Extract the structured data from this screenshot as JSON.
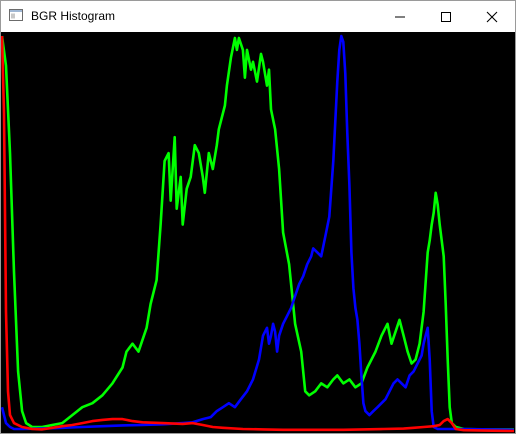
{
  "window": {
    "title": "BGR Histogram"
  },
  "icons": {
    "app": "app-window-icon",
    "minimize": "minimize-icon",
    "maximize": "maximize-icon",
    "close": "close-icon"
  },
  "colors": {
    "background": "#000000",
    "blue": "#0000ff",
    "green": "#00ff00",
    "red": "#ff0000"
  },
  "chart_data": {
    "type": "line",
    "xlim": [
      0,
      255
    ],
    "ylim": [
      0,
      1
    ],
    "grid": false,
    "series": [
      {
        "color": "#00ff00",
        "points": [
          [
            0,
            0.995
          ],
          [
            2,
            0.92
          ],
          [
            4,
            0.7
          ],
          [
            6,
            0.4
          ],
          [
            8,
            0.15
          ],
          [
            10,
            0.05
          ],
          [
            12,
            0.02
          ],
          [
            15,
            0.01
          ],
          [
            20,
            0.01
          ],
          [
            25,
            0.015
          ],
          [
            30,
            0.02
          ],
          [
            35,
            0.04
          ],
          [
            40,
            0.06
          ],
          [
            45,
            0.07
          ],
          [
            50,
            0.09
          ],
          [
            55,
            0.12
          ],
          [
            60,
            0.16
          ],
          [
            62,
            0.2
          ],
          [
            65,
            0.22
          ],
          [
            68,
            0.2
          ],
          [
            72,
            0.26
          ],
          [
            74,
            0.32
          ],
          [
            77,
            0.38
          ],
          [
            79,
            0.52
          ],
          [
            81,
            0.68
          ],
          [
            83,
            0.7
          ],
          [
            84,
            0.58
          ],
          [
            86,
            0.74
          ],
          [
            87,
            0.56
          ],
          [
            89,
            0.64
          ],
          [
            90,
            0.52
          ],
          [
            92,
            0.61
          ],
          [
            94,
            0.64
          ],
          [
            96,
            0.72
          ],
          [
            98,
            0.7
          ],
          [
            100,
            0.64
          ],
          [
            101,
            0.6
          ],
          [
            103,
            0.7
          ],
          [
            105,
            0.66
          ],
          [
            107,
            0.72
          ],
          [
            108,
            0.76
          ],
          [
            111,
            0.82
          ],
          [
            112,
            0.87
          ],
          [
            114,
            0.94
          ],
          [
            116,
            0.99
          ],
          [
            117,
            0.96
          ],
          [
            118,
            0.99
          ],
          [
            120,
            0.96
          ],
          [
            121,
            0.89
          ],
          [
            122,
            0.96
          ],
          [
            124,
            0.91
          ],
          [
            125,
            0.93
          ],
          [
            127,
            0.88
          ],
          [
            129,
            0.95
          ],
          [
            130,
            0.93
          ],
          [
            132,
            0.87
          ],
          [
            133,
            0.91
          ],
          [
            134,
            0.81
          ],
          [
            136,
            0.76
          ],
          [
            138,
            0.66
          ],
          [
            140,
            0.5
          ],
          [
            143,
            0.42
          ],
          [
            146,
            0.27
          ],
          [
            149,
            0.2
          ],
          [
            151,
            0.1
          ],
          [
            153,
            0.09
          ],
          [
            156,
            0.1
          ],
          [
            159,
            0.12
          ],
          [
            162,
            0.11
          ],
          [
            165,
            0.13
          ],
          [
            167,
            0.14
          ],
          [
            170,
            0.12
          ],
          [
            173,
            0.13
          ],
          [
            176,
            0.11
          ],
          [
            179,
            0.12
          ],
          [
            182,
            0.16
          ],
          [
            186,
            0.2
          ],
          [
            189,
            0.24
          ],
          [
            192,
            0.27
          ],
          [
            194,
            0.22
          ],
          [
            196,
            0.25
          ],
          [
            198,
            0.28
          ],
          [
            200,
            0.24
          ],
          [
            202,
            0.2
          ],
          [
            204,
            0.17
          ],
          [
            206,
            0.18
          ],
          [
            208,
            0.22
          ],
          [
            210,
            0.3
          ],
          [
            212,
            0.45
          ],
          [
            213,
            0.48
          ],
          [
            214,
            0.52
          ],
          [
            215,
            0.55
          ],
          [
            216,
            0.6
          ],
          [
            217,
            0.57
          ],
          [
            218,
            0.52
          ],
          [
            219,
            0.48
          ],
          [
            220,
            0.44
          ],
          [
            221,
            0.32
          ],
          [
            222,
            0.18
          ],
          [
            223,
            0.06
          ],
          [
            224,
            0.02
          ],
          [
            226,
            0.01
          ],
          [
            230,
            0.005
          ],
          [
            240,
            0.004
          ],
          [
            255,
            0.004
          ]
        ]
      },
      {
        "color": "#0000ff",
        "points": [
          [
            0,
            0.06
          ],
          [
            2,
            0.02
          ],
          [
            4,
            0.01
          ],
          [
            6,
            0.005
          ],
          [
            10,
            0.005
          ],
          [
            20,
            0.006
          ],
          [
            30,
            0.008
          ],
          [
            40,
            0.01
          ],
          [
            50,
            0.012
          ],
          [
            60,
            0.014
          ],
          [
            70,
            0.015
          ],
          [
            80,
            0.017
          ],
          [
            90,
            0.02
          ],
          [
            95,
            0.022
          ],
          [
            100,
            0.03
          ],
          [
            104,
            0.035
          ],
          [
            107,
            0.05
          ],
          [
            110,
            0.06
          ],
          [
            113,
            0.07
          ],
          [
            116,
            0.06
          ],
          [
            119,
            0.08
          ],
          [
            122,
            0.1
          ],
          [
            125,
            0.13
          ],
          [
            128,
            0.18
          ],
          [
            130,
            0.24
          ],
          [
            132,
            0.26
          ],
          [
            133,
            0.22
          ],
          [
            134,
            0.24
          ],
          [
            135,
            0.27
          ],
          [
            136,
            0.25
          ],
          [
            137,
            0.2
          ],
          [
            138,
            0.24
          ],
          [
            140,
            0.27
          ],
          [
            142,
            0.29
          ],
          [
            144,
            0.31
          ],
          [
            146,
            0.34
          ],
          [
            148,
            0.37
          ],
          [
            150,
            0.39
          ],
          [
            152,
            0.42
          ],
          [
            154,
            0.44
          ],
          [
            155,
            0.46
          ],
          [
            157,
            0.45
          ],
          [
            159,
            0.44
          ],
          [
            161,
            0.49
          ],
          [
            163,
            0.54
          ],
          [
            165,
            0.68
          ],
          [
            167,
            0.88
          ],
          [
            168,
            0.96
          ],
          [
            169,
            0.995
          ],
          [
            170,
            0.98
          ],
          [
            171,
            0.9
          ],
          [
            172,
            0.75
          ],
          [
            173,
            0.62
          ],
          [
            174,
            0.45
          ],
          [
            175,
            0.36
          ],
          [
            176,
            0.31
          ],
          [
            177,
            0.28
          ],
          [
            178,
            0.22
          ],
          [
            179,
            0.14
          ],
          [
            180,
            0.07
          ],
          [
            181,
            0.05
          ],
          [
            183,
            0.04
          ],
          [
            185,
            0.05
          ],
          [
            187,
            0.06
          ],
          [
            189,
            0.07
          ],
          [
            191,
            0.08
          ],
          [
            193,
            0.1
          ],
          [
            195,
            0.12
          ],
          [
            197,
            0.13
          ],
          [
            199,
            0.12
          ],
          [
            201,
            0.11
          ],
          [
            203,
            0.14
          ],
          [
            205,
            0.15
          ],
          [
            207,
            0.17
          ],
          [
            209,
            0.19
          ],
          [
            210,
            0.22
          ],
          [
            211,
            0.24
          ],
          [
            212,
            0.26
          ],
          [
            213,
            0.18
          ],
          [
            214,
            0.05
          ],
          [
            215,
            0.01
          ],
          [
            217,
            0.005
          ],
          [
            230,
            0.005
          ],
          [
            255,
            0.003
          ]
        ]
      },
      {
        "color": "#ff0000",
        "points": [
          [
            0,
            0.995
          ],
          [
            1,
            0.8
          ],
          [
            2,
            0.3
          ],
          [
            3,
            0.1
          ],
          [
            4,
            0.04
          ],
          [
            6,
            0.02
          ],
          [
            10,
            0.01
          ],
          [
            15,
            0.005
          ],
          [
            20,
            0.004
          ],
          [
            25,
            0.008
          ],
          [
            30,
            0.012
          ],
          [
            35,
            0.015
          ],
          [
            40,
            0.02
          ],
          [
            45,
            0.025
          ],
          [
            50,
            0.028
          ],
          [
            55,
            0.03
          ],
          [
            60,
            0.03
          ],
          [
            65,
            0.025
          ],
          [
            70,
            0.022
          ],
          [
            80,
            0.02
          ],
          [
            90,
            0.018
          ],
          [
            95,
            0.02
          ],
          [
            100,
            0.015
          ],
          [
            105,
            0.01
          ],
          [
            110,
            0.008
          ],
          [
            120,
            0.005
          ],
          [
            130,
            0.004
          ],
          [
            140,
            0.003
          ],
          [
            150,
            0.003
          ],
          [
            160,
            0.003
          ],
          [
            170,
            0.003
          ],
          [
            180,
            0.004
          ],
          [
            190,
            0.005
          ],
          [
            200,
            0.006
          ],
          [
            205,
            0.008
          ],
          [
            210,
            0.01
          ],
          [
            215,
            0.012
          ],
          [
            218,
            0.015
          ],
          [
            220,
            0.025
          ],
          [
            222,
            0.03
          ],
          [
            224,
            0.02
          ],
          [
            226,
            0.005
          ],
          [
            230,
            0.002
          ],
          [
            240,
            0.001
          ],
          [
            255,
            0.0
          ]
        ]
      }
    ]
  }
}
